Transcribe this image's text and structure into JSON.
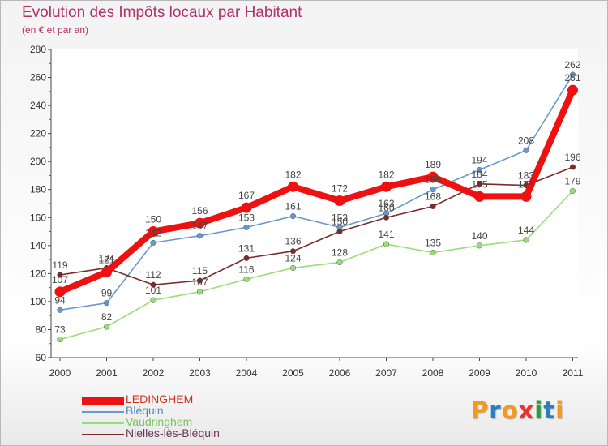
{
  "header": {
    "title": "Evolution des Impôts locaux par Habitant",
    "subtitle": "(en € et par an)"
  },
  "chart_data": {
    "type": "line",
    "title": "Evolution des Impôts locaux par Habitant",
    "subtitle": "(en € et par an)",
    "xlabel": "",
    "ylabel": "",
    "categories": [
      "2000",
      "2001",
      "2002",
      "2003",
      "2004",
      "2005",
      "2006",
      "2007",
      "2008",
      "2009",
      "2010",
      "2011"
    ],
    "ylim": [
      60,
      280
    ],
    "yticks": [
      60,
      80,
      100,
      120,
      140,
      160,
      180,
      200,
      220,
      240,
      260,
      280
    ],
    "grid": false,
    "legend_position": "bottom-left",
    "series": [
      {
        "name": "LEDINGHEM",
        "color": "#ee1111",
        "emphasis": true,
        "values": [
          107,
          121,
          150,
          156,
          167,
          182,
          172,
          182,
          189,
          175,
          175,
          251
        ]
      },
      {
        "name": "Bléquin",
        "color": "#6699cc",
        "emphasis": false,
        "values": [
          94,
          99,
          142,
          147,
          153,
          161,
          153,
          163,
          180,
          194,
          208,
          262
        ]
      },
      {
        "name": "Vaudringhem",
        "color": "#99dd77",
        "emphasis": false,
        "values": [
          73,
          82,
          101,
          107,
          116,
          124,
          128,
          141,
          135,
          140,
          144,
          179
        ]
      },
      {
        "name": "Nielles-lès-Bléquin",
        "color": "#7a2a2a",
        "emphasis": false,
        "values": [
          119,
          124,
          112,
          115,
          131,
          136,
          150,
          160,
          168,
          184,
          183,
          196
        ]
      }
    ]
  },
  "brand": {
    "name": "Proxiti",
    "letters": [
      "P",
      "r",
      "o",
      "x",
      "i",
      "t",
      "i"
    ],
    "colors": [
      "#f39a1a",
      "#2a7fc0",
      "#f39a1a",
      "#e8342a",
      "#2a9e3a",
      "#2a7fc0",
      "#f39a1a"
    ]
  }
}
